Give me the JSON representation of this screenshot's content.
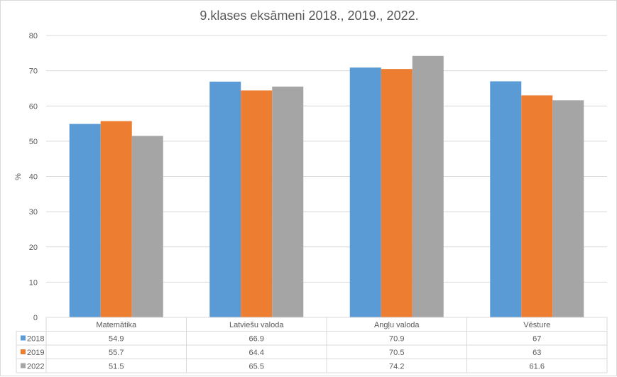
{
  "chart_data": {
    "type": "bar",
    "title": "9.klases eksāmeni 2018., 2019., 2022.",
    "ylabel": "%",
    "xlabel": "",
    "ylim": [
      0,
      80
    ],
    "yticks": [
      "0",
      "10",
      "20",
      "30",
      "40",
      "50",
      "60",
      "70",
      "80"
    ],
    "grid": true,
    "legend": "data-table",
    "categories": [
      "Matemātika",
      "Latviešu valoda",
      "Angļu valoda",
      "Vēsture"
    ],
    "series": [
      {
        "name": "2018",
        "color": "#5b9bd5",
        "values": [
          54.9,
          66.9,
          70.9,
          67
        ],
        "labels": [
          "54.9",
          "66.9",
          "70.9",
          "67"
        ]
      },
      {
        "name": "2019",
        "color": "#ed7d31",
        "values": [
          55.7,
          64.4,
          70.5,
          63
        ],
        "labels": [
          "55.7",
          "64.4",
          "70.5",
          "63"
        ]
      },
      {
        "name": "2022",
        "color": "#a5a5a5",
        "values": [
          51.5,
          65.5,
          74.2,
          61.6
        ],
        "labels": [
          "51.5",
          "65.5",
          "74.2",
          "61.6"
        ]
      }
    ]
  }
}
